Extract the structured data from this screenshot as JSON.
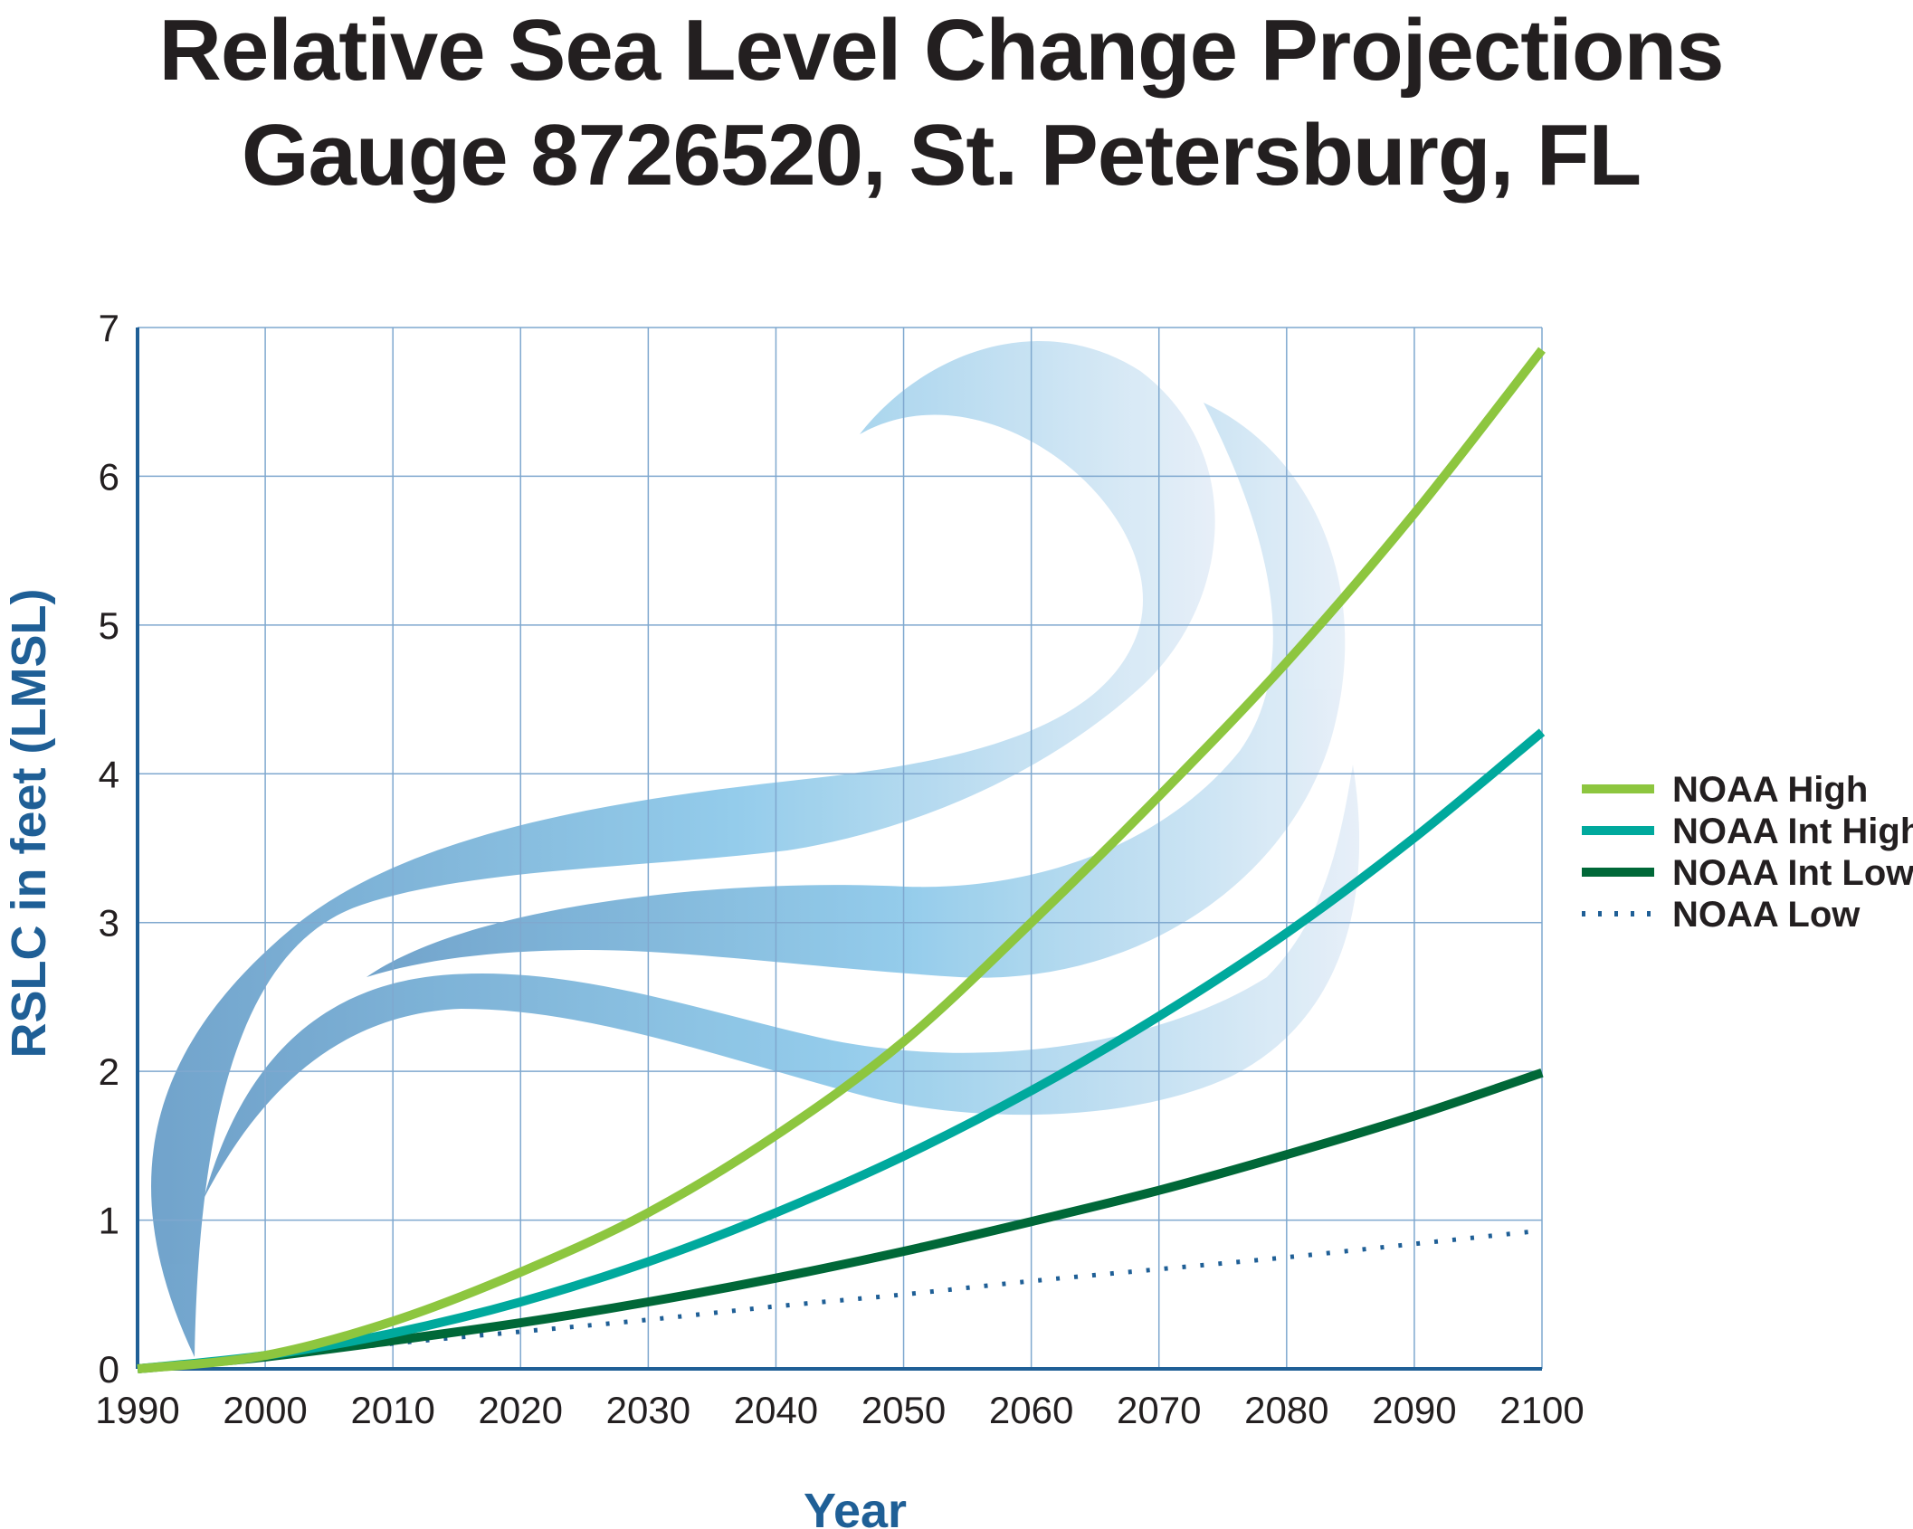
{
  "chart_data": {
    "type": "line",
    "title": [
      "Relative Sea Level Change Projections",
      "Gauge 8726520, St. Petersburg, FL"
    ],
    "xlabel": "Year",
    "ylabel": "RSLC in feet (LMSL)",
    "xlim": [
      1990,
      2100
    ],
    "ylim": [
      0,
      7
    ],
    "xticks": [
      1990,
      2000,
      2010,
      2020,
      2030,
      2040,
      2050,
      2060,
      2070,
      2080,
      2090,
      2100
    ],
    "yticks": [
      0,
      1,
      2,
      3,
      4,
      5,
      6,
      7
    ],
    "grid": true,
    "legend_position": "right",
    "x": [
      1990,
      2000,
      2010,
      2020,
      2030,
      2040,
      2050,
      2060,
      2070,
      2080,
      2090,
      2100
    ],
    "series": [
      {
        "name": "NOAA High",
        "color": "#8dc63f",
        "style": "solid",
        "values": [
          0.0,
          0.09,
          0.32,
          0.65,
          1.05,
          1.57,
          2.2,
          3.0,
          3.85,
          4.75,
          5.75,
          6.85
        ]
      },
      {
        "name": "NOAA Int High",
        "color": "#00a99d",
        "style": "solid",
        "values": [
          0.0,
          0.09,
          0.24,
          0.45,
          0.72,
          1.05,
          1.43,
          1.87,
          2.37,
          2.93,
          3.57,
          4.28
        ]
      },
      {
        "name": "NOAA Int Low",
        "color": "#006838",
        "style": "solid",
        "values": [
          0.0,
          0.08,
          0.19,
          0.31,
          0.45,
          0.61,
          0.79,
          0.99,
          1.2,
          1.44,
          1.7,
          1.99
        ]
      },
      {
        "name": "NOAA Low",
        "color": "#1f5f96",
        "style": "dotted",
        "values": [
          0.0,
          0.08,
          0.17,
          0.25,
          0.33,
          0.42,
          0.5,
          0.59,
          0.67,
          0.75,
          0.84,
          0.93
        ]
      }
    ]
  }
}
